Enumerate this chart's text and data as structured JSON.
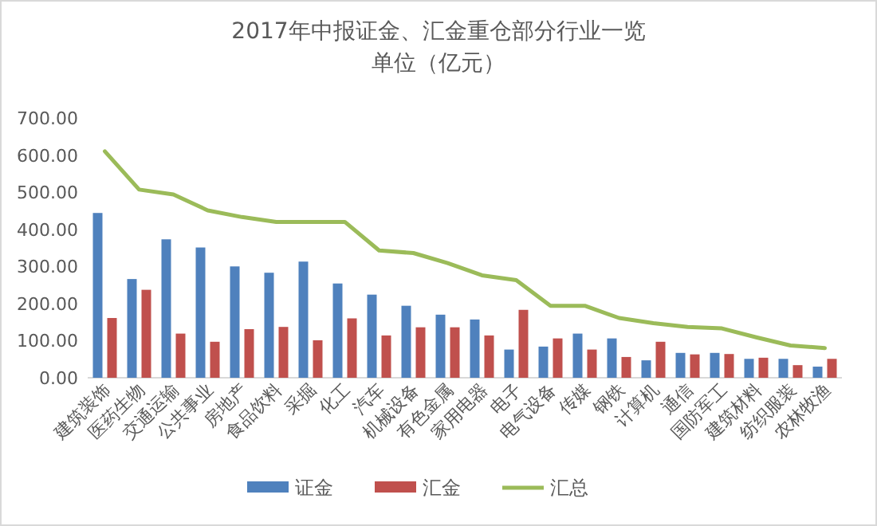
{
  "chart_data": {
    "type": "bar",
    "title": "2017年中报证金、汇金重仓部分行业一览",
    "subtitle": "单位（亿元）",
    "categories": [
      "建筑装饰",
      "医药生物",
      "交通运输",
      "公共事业",
      "房地产",
      "食品饮料",
      "采掘",
      "化工",
      "汽车",
      "机械设备",
      "有色金属",
      "家用电器",
      "电子",
      "电气设备",
      "传媒",
      "钢铁",
      "计算机",
      "通信",
      "国防军工",
      "建筑材料",
      "纺织服装",
      "农林牧渔"
    ],
    "series": [
      {
        "name": "证金",
        "color": "#4f81bd",
        "values": [
          444,
          266,
          373,
          351,
          300,
          283,
          313,
          254,
          224,
          194,
          170,
          157,
          76,
          84,
          119,
          106,
          47,
          67,
          67,
          51,
          51,
          30
        ]
      },
      {
        "name": "汇金",
        "color": "#c0504d",
        "values": [
          161,
          237,
          119,
          97,
          131,
          137,
          101,
          160,
          114,
          136,
          136,
          114,
          183,
          106,
          76,
          56,
          97,
          63,
          64,
          54,
          34,
          51
        ]
      },
      {
        "name": "汇总",
        "type": "line",
        "color": "#9bbb59",
        "values": [
          610,
          507,
          494,
          451,
          433,
          420,
          420,
          420,
          343,
          336,
          309,
          276,
          263,
          194,
          194,
          161,
          147,
          137,
          133,
          109,
          87,
          80
        ]
      }
    ],
    "ylim": [
      0,
      700
    ],
    "yticks": [
      {
        "value": 0,
        "label": "0.00"
      },
      {
        "value": 100,
        "label": "100.00"
      },
      {
        "value": 200,
        "label": "200.00"
      },
      {
        "value": 300,
        "label": "300.00"
      },
      {
        "value": 400,
        "label": "400.00"
      },
      {
        "value": 500,
        "label": "500.00"
      },
      {
        "value": 600,
        "label": "600.00"
      },
      {
        "value": 700,
        "label": "700.00"
      }
    ],
    "legend": "bottom"
  }
}
